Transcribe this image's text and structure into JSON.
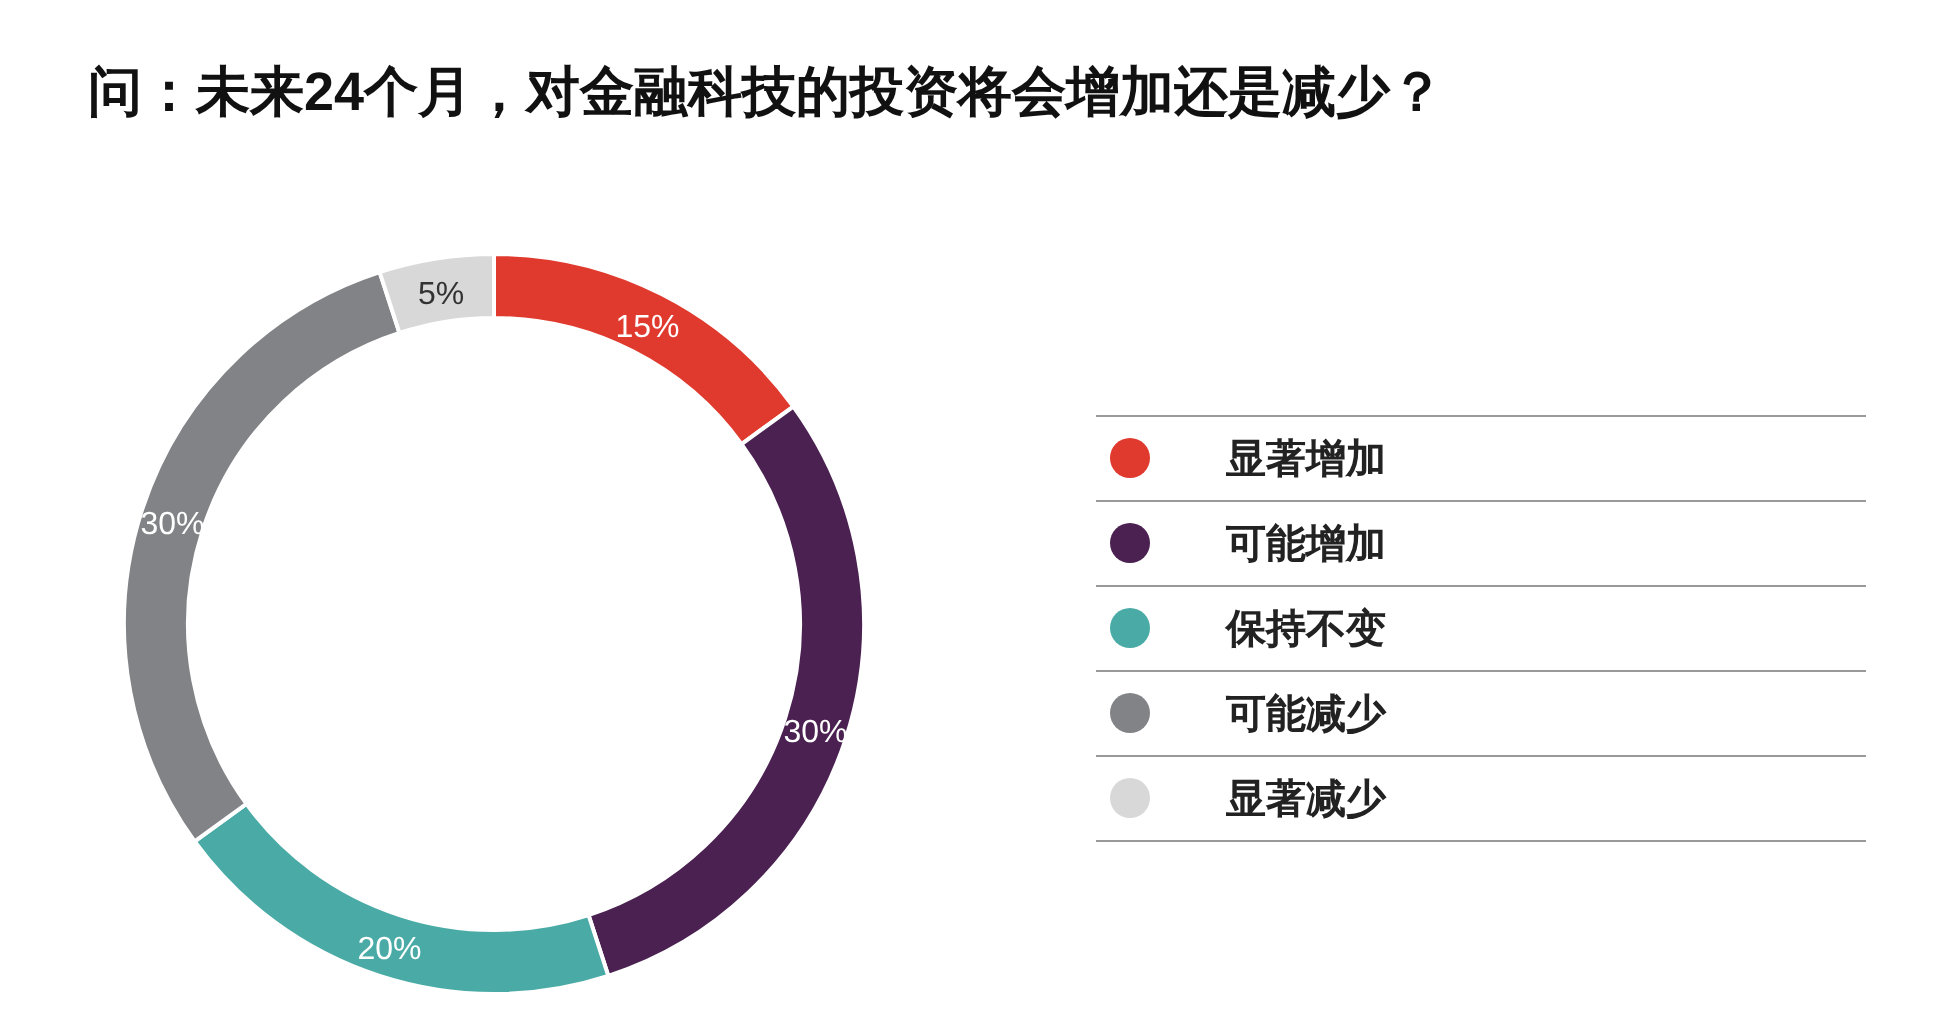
{
  "chart_data": {
    "type": "donut",
    "title": "问：未来24个月，对金融科技的投资将会增加还是减少？",
    "categories": [
      "显著增加",
      "可能增加",
      "保持不变",
      "可能减少",
      "显著减少"
    ],
    "values": [
      15,
      30,
      20,
      30,
      5
    ],
    "colors": [
      "#e0392d",
      "#4a2151",
      "#4aaba6",
      "#818386",
      "#d8d8d8"
    ],
    "value_labels": [
      "15%",
      "30%",
      "20%",
      "30%",
      "5%"
    ],
    "legend": "right"
  }
}
